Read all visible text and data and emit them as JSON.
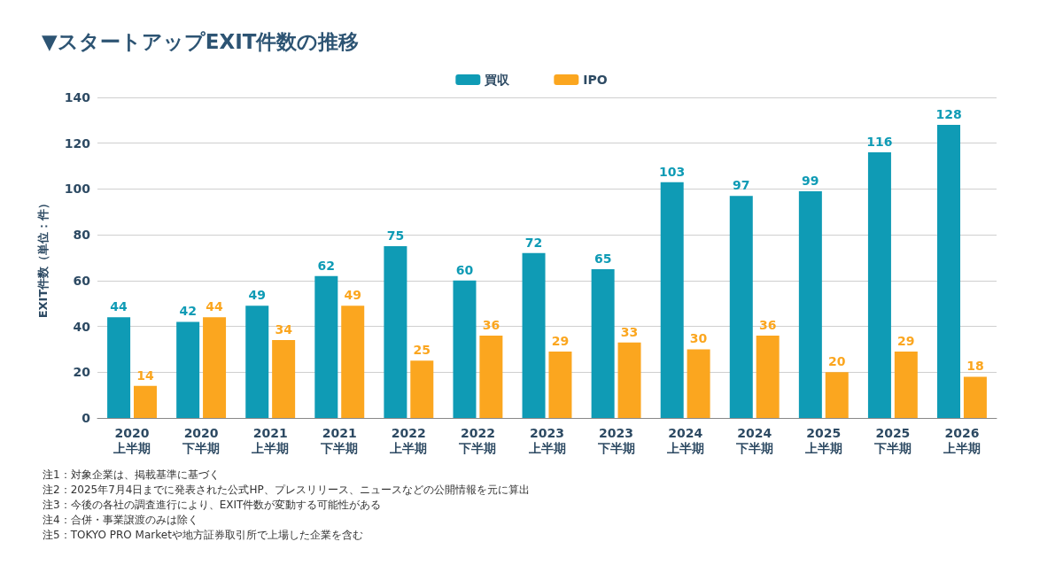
{
  "chart_data": {
    "type": "bar",
    "title": "▼スタートアップEXIT件数の推移",
    "ylabel": "EXIT件数（単位：件）",
    "categories": [
      "2020\n上半期",
      "2020\n下半期",
      "2021\n上半期",
      "2021\n下半期",
      "2022\n上半期",
      "2022\n下半期",
      "2023\n上半期",
      "2023\n下半期",
      "2024\n上半期",
      "2024\n下半期",
      "2025\n上半期",
      "2025\n下半期",
      "2026\n上半期"
    ],
    "series": [
      {
        "name": "買収",
        "color": "#0f9bb5",
        "values": [
          44,
          42,
          49,
          62,
          75,
          60,
          72,
          65,
          103,
          97,
          99,
          116,
          128
        ]
      },
      {
        "name": "IPO",
        "color": "#fba61f",
        "values": [
          14,
          44,
          34,
          49,
          25,
          36,
          29,
          33,
          30,
          36,
          20,
          29,
          18
        ]
      }
    ],
    "ylim": [
      0,
      140
    ],
    "yticks": [
      0,
      20,
      40,
      60,
      80,
      100,
      120,
      140
    ],
    "grid": "y",
    "legend": "top",
    "data_labels": true,
    "annotations": [
      "注1：対象企業は、掲載基準に基づく",
      "注2：2025年7月4日までに発表された公式HP、プレスリリース、ニュースなどの公開情報を元に算出",
      "注3：今後の各社の調査進行により、EXIT件数が変動する可能性がある",
      "注4：合併・事業譲渡のみは除く",
      "注5：TOKYO PRO Marketや地方証券取引所で上場した企業を含む"
    ]
  }
}
